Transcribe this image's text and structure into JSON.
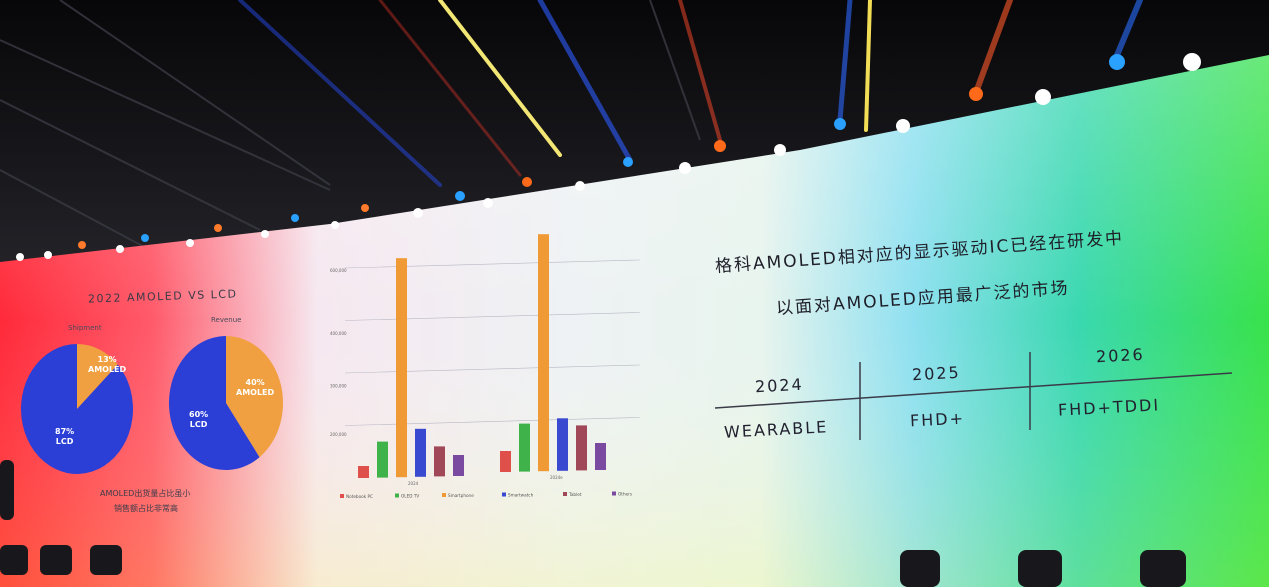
{
  "left_panel": {
    "title": "2022 AMOLED VS LCD",
    "shipment_label": "Shipment",
    "revenue_label": "Revenue",
    "shipment_amoled": "13%\nAMOLED",
    "shipment_lcd": "87%\nLCD",
    "revenue_amoled": "40%\nAMOLED",
    "revenue_lcd": "60%\nLCD",
    "note_line1": "AMOLED出货量占比虽小",
    "note_line2": "销售额占比非常高"
  },
  "chart_data": [
    {
      "type": "pie",
      "title": "Shipment",
      "slices": [
        {
          "name": "AMOLED",
          "value": 13,
          "color": "#f0a040"
        },
        {
          "name": "LCD",
          "value": 87,
          "color": "#2b3fd6"
        }
      ]
    },
    {
      "type": "pie",
      "title": "Revenue",
      "slices": [
        {
          "name": "AMOLED",
          "value": 40,
          "color": "#f0a040"
        },
        {
          "name": "LCD",
          "value": 60,
          "color": "#2b3fd6"
        }
      ]
    },
    {
      "type": "bar",
      "categories": [
        "2024",
        "2024e"
      ],
      "ytick_labels": [
        "600,000",
        "400,000",
        "300,000",
        "200,000"
      ],
      "ylim": [
        0,
        800
      ],
      "series": [
        {
          "name": "Notebook PC",
          "color": "#e0504a",
          "values": [
            40,
            70
          ]
        },
        {
          "name": "OLED TV",
          "color": "#3fb24a",
          "values": [
            120,
            160
          ]
        },
        {
          "name": "Smartphone",
          "color": "#f09a36",
          "values": [
            730,
            790
          ]
        },
        {
          "name": "Smartwatch",
          "color": "#3a4ad0",
          "values": [
            160,
            175
          ]
        },
        {
          "name": "Tablet",
          "color": "#a04858",
          "values": [
            100,
            150
          ]
        },
        {
          "name": "Others",
          "color": "#7a4aa0",
          "values": [
            70,
            90
          ]
        }
      ]
    }
  ],
  "right_panel": {
    "headline_line1": "格科AMOLED相对应的显示驱动IC已经在研发中",
    "headline_line2": "以面对AMOLED应用最广泛的市场",
    "years": [
      "2024",
      "2025",
      "2026"
    ],
    "products": [
      "WEARABLE",
      "FHD+",
      "FHD+TDDI"
    ]
  },
  "colors": {
    "amoled": "#f0a040",
    "lcd": "#2b3fd6"
  }
}
